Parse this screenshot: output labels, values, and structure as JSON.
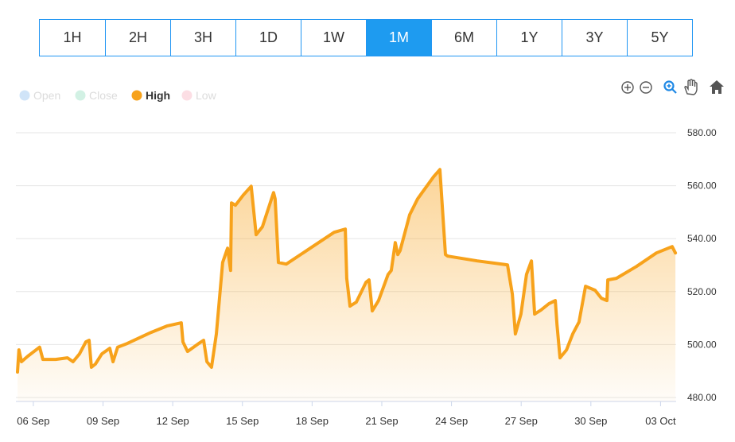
{
  "chart_data": {
    "type": "area",
    "range_buttons": [
      "1H",
      "2H",
      "3H",
      "1D",
      "1W",
      "1M",
      "6M",
      "1Y",
      "3Y",
      "5Y"
    ],
    "selected": "1M",
    "series": [
      {
        "name": "Open",
        "color": "#7cb5ec",
        "visible": false
      },
      {
        "name": "Close",
        "color": "#7fd9b4",
        "visible": false
      },
      {
        "name": "High",
        "color": "#f7a21b",
        "visible": true,
        "x": [
          5.32,
          5.38,
          5.49,
          5.76,
          6.27,
          6.41,
          6.96,
          7.47,
          7.71,
          7.99,
          8.26,
          8.4,
          8.5,
          8.67,
          8.95,
          9.29,
          9.43,
          9.63,
          10.04,
          11.07,
          11.75,
          12.37,
          12.44,
          12.64,
          13.12,
          13.33,
          13.47,
          13.67,
          13.88,
          14.15,
          14.36,
          14.49,
          14.53,
          14.7,
          15.04,
          15.38,
          15.59,
          15.86,
          16.34,
          16.41,
          16.55,
          16.89,
          17.92,
          18.95,
          19.43,
          19.49,
          19.63,
          19.9,
          20.32,
          20.45,
          20.59,
          20.86,
          21.27,
          21.41,
          21.58,
          21.69,
          21.79,
          22.2,
          22.54,
          22.71,
          23.23,
          23.5,
          23.74,
          23.84,
          25.11,
          26.41,
          26.62,
          26.75,
          26.99,
          27.23,
          27.44,
          27.58,
          27.85,
          28.19,
          28.47,
          28.54,
          28.67,
          28.95,
          29.22,
          29.49,
          29.77,
          30.18,
          30.45,
          30.69,
          30.73,
          31.1,
          31.96,
          32.82,
          33.5,
          33.64
        ],
        "values": [
          489.6,
          498,
          493.5,
          495.6,
          499,
          494.4,
          494.4,
          495,
          493.5,
          496.5,
          501,
          501.6,
          491.4,
          492.6,
          496.5,
          498.6,
          493.5,
          499,
          500.4,
          504.6,
          507,
          508.2,
          501,
          497.4,
          500.4,
          501.6,
          493.5,
          491.4,
          504,
          531,
          536.4,
          528,
          553.5,
          552.6,
          556.5,
          559.8,
          541.5,
          544.5,
          557.4,
          555,
          531,
          530.4,
          536.4,
          542.4,
          543.6,
          525,
          514.5,
          516,
          523.5,
          524.4,
          512.7,
          516.6,
          526.5,
          528,
          538.5,
          534,
          535.5,
          549,
          555,
          557.1,
          563.4,
          566.1,
          534,
          533.4,
          531.6,
          530.1,
          519,
          504,
          511.5,
          526.5,
          531.6,
          511.5,
          513,
          515.4,
          516.6,
          507.6,
          495,
          498,
          504,
          508.5,
          522,
          520.5,
          517.5,
          516.6,
          524.4,
          525,
          529.5,
          534.6,
          537,
          534.6
        ]
      },
      {
        "name": "Low",
        "color": "#f7a3b4",
        "visible": false
      }
    ],
    "xlim": [
      5.25,
      33.67
    ],
    "xticks": [
      {
        "value": 6,
        "label": "06 Sep"
      },
      {
        "value": 9,
        "label": "09 Sep"
      },
      {
        "value": 12,
        "label": "12 Sep"
      },
      {
        "value": 15,
        "label": "15 Sep"
      },
      {
        "value": 18,
        "label": "18 Sep"
      },
      {
        "value": 21,
        "label": "21 Sep"
      },
      {
        "value": 24,
        "label": "24 Sep"
      },
      {
        "value": 27,
        "label": "27 Sep"
      },
      {
        "value": 30,
        "label": "30 Sep"
      },
      {
        "value": 33,
        "label": "03 Oct"
      }
    ],
    "ylim": [
      478.5,
      582.1
    ],
    "yticks": [
      {
        "value": 480,
        "label": "480.00"
      },
      {
        "value": 500,
        "label": "500.00"
      },
      {
        "value": 520,
        "label": "520.00"
      },
      {
        "value": 540,
        "label": "540.00"
      },
      {
        "value": 560,
        "label": "560.00"
      },
      {
        "value": 580,
        "label": "580.00"
      }
    ],
    "grid": true
  }
}
